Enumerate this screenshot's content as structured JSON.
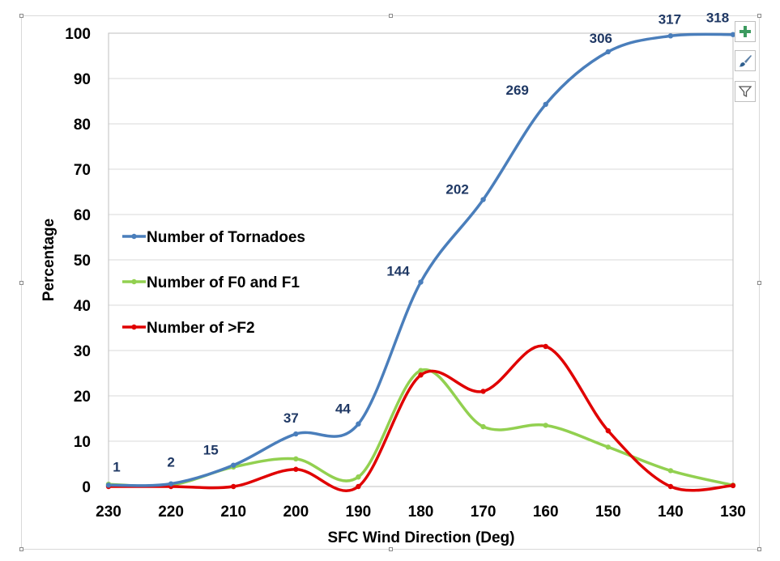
{
  "chart_data": {
    "type": "line",
    "xlabel": "SFC Wind Direction (Deg)",
    "ylabel": "Percentage",
    "x_ticks": [
      230,
      220,
      210,
      200,
      190,
      180,
      170,
      160,
      150,
      140,
      130
    ],
    "y_ticks": [
      0,
      10,
      20,
      30,
      40,
      50,
      60,
      70,
      80,
      90,
      100
    ],
    "xlim": [
      230,
      130
    ],
    "ylim": [
      0,
      100
    ],
    "x_reversed": true,
    "grid": "horizontal",
    "legend_position": "left-middle",
    "series": [
      {
        "name": "Number of Tornadoes",
        "color": "#4a7ebb",
        "x": [
          230,
          220,
          210,
          200,
          190,
          180,
          170,
          160,
          150,
          140,
          130
        ],
        "values": [
          0.3,
          0.6,
          4.7,
          11.6,
          13.8,
          45.1,
          63.3,
          84.3,
          95.9,
          99.4,
          99.7
        ],
        "data_labels": [
          "1",
          "2",
          "15",
          "37",
          "44",
          "144",
          "202",
          "269",
          "306",
          "317",
          "318"
        ]
      },
      {
        "name": "Number of F0 and F1",
        "color": "#92d050",
        "x": [
          230,
          220,
          210,
          200,
          190,
          180,
          170,
          160,
          150,
          140,
          130
        ],
        "values": [
          0.5,
          0.3,
          4.3,
          6.1,
          2.1,
          25.6,
          13.2,
          13.5,
          8.7,
          3.5,
          0.3
        ],
        "data_labels": []
      },
      {
        "name": "Number of >F2",
        "color": "#e00000",
        "x": [
          230,
          220,
          210,
          200,
          190,
          180,
          170,
          160,
          150,
          140,
          130
        ],
        "values": [
          0,
          0,
          0,
          3.8,
          0,
          24.6,
          21.0,
          30.9,
          12.3,
          0,
          0.2
        ],
        "data_labels": []
      }
    ]
  },
  "tools": {
    "add_icon": "plus-icon",
    "style_icon": "paintbrush-icon",
    "filter_icon": "filter-icon"
  }
}
